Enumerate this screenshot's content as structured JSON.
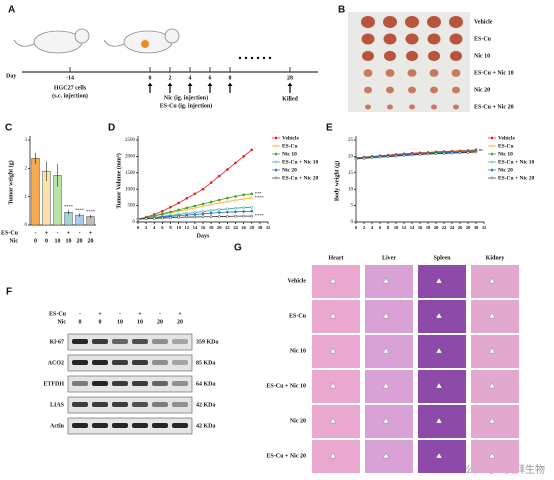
{
  "panel_a": {
    "label": "A",
    "day_label": "Day",
    "ticks": [
      "-14",
      "0",
      "2",
      "4",
      "6",
      "8",
      "28"
    ],
    "cell_note": [
      "HGC27 cells",
      "(s.c. injection)"
    ],
    "drug_notes": [
      "Nic (ig. injection)",
      "ES-Cu (ig. injection)"
    ],
    "end_note": "Killed"
  },
  "panel_b": {
    "label": "B",
    "groups": [
      "Vehicle",
      "ES-Cu",
      "Nic 10",
      "ES-Cu + Nic 10",
      "Nic 20",
      "ES-Cu + Nic 20"
    ]
  },
  "chart_data": [
    {
      "type": "bar",
      "label": "C",
      "ylabel": "Tumor weight (g)",
      "values": [
        2.35,
        1.9,
        1.75,
        0.45,
        0.35,
        0.3
      ],
      "errors": [
        0.2,
        0.35,
        0.4,
        0.08,
        0.06,
        0.06
      ],
      "colors": [
        "#f7a94f",
        "#fde3a7",
        "#b9e3a8",
        "#9fd8d0",
        "#a9c9f0",
        "#bbbbbb"
      ],
      "significance": [
        null,
        null,
        null,
        "****",
        "****",
        "****"
      ],
      "ylim": [
        0,
        3
      ],
      "yticks": [
        0,
        1,
        2,
        3
      ],
      "rows": [
        {
          "label": "ES-Cu",
          "cells": [
            "-",
            "+",
            "-",
            "+",
            "-",
            "+"
          ]
        },
        {
          "label": "Nic",
          "cells": [
            "0",
            "0",
            "10",
            "10",
            "20",
            "20"
          ]
        }
      ]
    },
    {
      "type": "line",
      "label": "D",
      "ylabel": "Tumor Volume (mm³)",
      "xlabel": "Days",
      "legend": "upper right",
      "x": [
        0,
        2,
        4,
        6,
        8,
        10,
        12,
        14,
        16,
        18,
        20,
        22,
        24,
        26,
        28
      ],
      "xlim": [
        0,
        32
      ],
      "xticks": [
        0,
        2,
        4,
        6,
        8,
        10,
        12,
        14,
        16,
        18,
        20,
        22,
        24,
        26,
        28,
        30,
        32
      ],
      "ylim": [
        0,
        2500
      ],
      "yticks": [
        0,
        500,
        1000,
        1500,
        2000,
        2500
      ],
      "series": [
        {
          "name": "Vehicle",
          "color": "#e31a1c",
          "values": [
            90,
            150,
            230,
            330,
            450,
            580,
            720,
            860,
            1000,
            1200,
            1400,
            1600,
            1800,
            2000,
            2200
          ]
        },
        {
          "name": "ES-Cu",
          "color": "#f5a300",
          "values": [
            90,
            130,
            180,
            230,
            280,
            330,
            380,
            430,
            480,
            530,
            580,
            620,
            660,
            700,
            730
          ],
          "significance": "****"
        },
        {
          "name": "Nic 10",
          "color": "#3aa02a",
          "values": [
            90,
            130,
            190,
            250,
            310,
            370,
            430,
            490,
            550,
            610,
            670,
            730,
            780,
            830,
            860
          ],
          "significance": "***"
        },
        {
          "name": "ES-Cu + Nic 10",
          "color": "#1a9e8f",
          "values": [
            90,
            110,
            140,
            170,
            200,
            230,
            260,
            290,
            320,
            350,
            380,
            400,
            420,
            440,
            450
          ]
        },
        {
          "name": "Nic 20",
          "color": "#2b6fd6",
          "values": [
            90,
            110,
            130,
            150,
            170,
            190,
            210,
            230,
            250,
            270,
            290,
            300,
            310,
            320,
            330
          ]
        },
        {
          "name": "ES-Cu + Nic 20",
          "color": "#333333",
          "values": [
            90,
            100,
            110,
            120,
            130,
            140,
            150,
            150,
            160,
            160,
            170,
            170,
            180,
            180,
            180
          ],
          "significance": "****"
        }
      ]
    },
    {
      "type": "line",
      "label": "E",
      "ylabel": "Body weight (g)",
      "legend": "upper right",
      "x": [
        0,
        2,
        4,
        6,
        8,
        10,
        12,
        14,
        16,
        18,
        20,
        22,
        24,
        26,
        28,
        30
      ],
      "xlim": [
        0,
        32
      ],
      "xticks": [
        0,
        2,
        4,
        6,
        8,
        10,
        12,
        14,
        16,
        18,
        20,
        22,
        24,
        26,
        28,
        30,
        32
      ],
      "ylim": [
        0,
        25
      ],
      "yticks": [
        0,
        5,
        10,
        15,
        20,
        25
      ],
      "series": [
        {
          "name": "Vehicle",
          "color": "#e31a1c",
          "values": [
            19.5,
            19.8,
            20,
            20.2,
            20.4,
            20.6,
            20.8,
            21,
            21.1,
            21.2,
            21.4,
            21.5,
            21.6,
            21.7,
            21.8,
            22
          ],
          "significance": "ns"
        },
        {
          "name": "ES-Cu",
          "color": "#f5a300",
          "values": [
            19.4,
            19.6,
            19.8,
            20,
            20.1,
            20.3,
            20.5,
            20.7,
            20.8,
            20.9,
            21.1,
            21.2,
            21.3,
            21.4,
            21.5,
            21.6
          ]
        },
        {
          "name": "Nic 10",
          "color": "#3aa02a",
          "values": [
            19.6,
            19.7,
            19.9,
            20.1,
            20.3,
            20.4,
            20.6,
            20.8,
            20.9,
            21,
            21.2,
            21.3,
            21.4,
            21.5,
            21.6,
            21.7
          ]
        },
        {
          "name": "ES-Cu + Nic 10",
          "color": "#1a9e8f",
          "values": [
            19.3,
            19.5,
            19.7,
            19.9,
            20,
            20.2,
            20.4,
            20.5,
            20.7,
            20.8,
            20.9,
            21,
            21.1,
            21.2,
            21.3,
            21.4
          ]
        },
        {
          "name": "Nic 20",
          "color": "#2b6fd6",
          "values": [
            19.5,
            19.6,
            19.8,
            20,
            20.2,
            20.3,
            20.5,
            20.6,
            20.8,
            20.9,
            21,
            21.1,
            21.2,
            21.3,
            21.4,
            21.5
          ]
        },
        {
          "name": "ES-Cu + Nic 20",
          "color": "#333333",
          "values": [
            19.2,
            19.4,
            19.6,
            19.8,
            19.9,
            20.1,
            20.3,
            20.4,
            20.6,
            20.7,
            20.8,
            20.9,
            21,
            21.1,
            21.2,
            21.3
          ]
        }
      ]
    }
  ],
  "panel_f": {
    "label": "F",
    "rows": [
      {
        "label": "ES-Cu",
        "cells": [
          "-",
          "+",
          "-",
          "+",
          "-",
          "+"
        ]
      },
      {
        "label": "Nic",
        "cells": [
          "0",
          "0",
          "10",
          "10",
          "20",
          "20"
        ]
      }
    ],
    "proteins": [
      {
        "name": "Ki-67",
        "size": "359 KDa"
      },
      {
        "name": "ACO2",
        "size": "85 KDa"
      },
      {
        "name": "ETFDH",
        "size": "64 KDa"
      },
      {
        "name": "LIAS",
        "size": "42 KDa"
      },
      {
        "name": "Actin",
        "size": "42 KDa"
      }
    ]
  },
  "panel_g": {
    "label": "G",
    "columns": [
      "Heart",
      "Liver",
      "Spleen",
      "Kidney"
    ],
    "rows": [
      "Vehicle",
      "ES-Cu",
      "Nic 10",
      "ES-Cu + Nic 10",
      "Nic 20",
      "ES-Cu + Nic 20"
    ]
  },
  "watermark": "公众号 · 英拜生物"
}
